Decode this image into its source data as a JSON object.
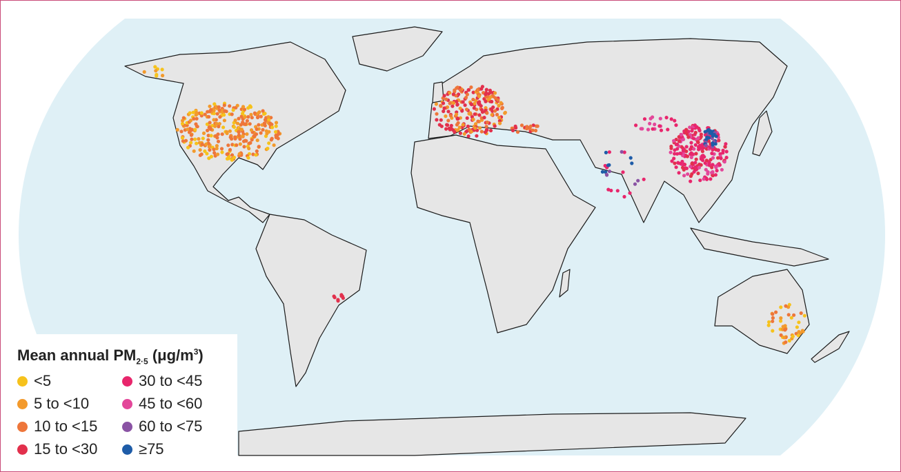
{
  "legend": {
    "title": {
      "main": "Mean annual PM",
      "sub": "2·5",
      "unit": " (μg/m",
      "sup": "3",
      "close": ")"
    },
    "items": [
      {
        "label": "<5",
        "color": "#f6c21c"
      },
      {
        "label": "5 to <10",
        "color": "#f39a2c"
      },
      {
        "label": "10 to <15",
        "color": "#ee763a"
      },
      {
        "label": "15 to <30",
        "color": "#e2304c"
      },
      {
        "label": "30 to <45",
        "color": "#e8266c"
      },
      {
        "label": "45 to <60",
        "color": "#e3479a"
      },
      {
        "label": "60 to <75",
        "color": "#8a53a4"
      },
      {
        "label": "≥75",
        "color": "#1e5ca8"
      }
    ]
  }
}
